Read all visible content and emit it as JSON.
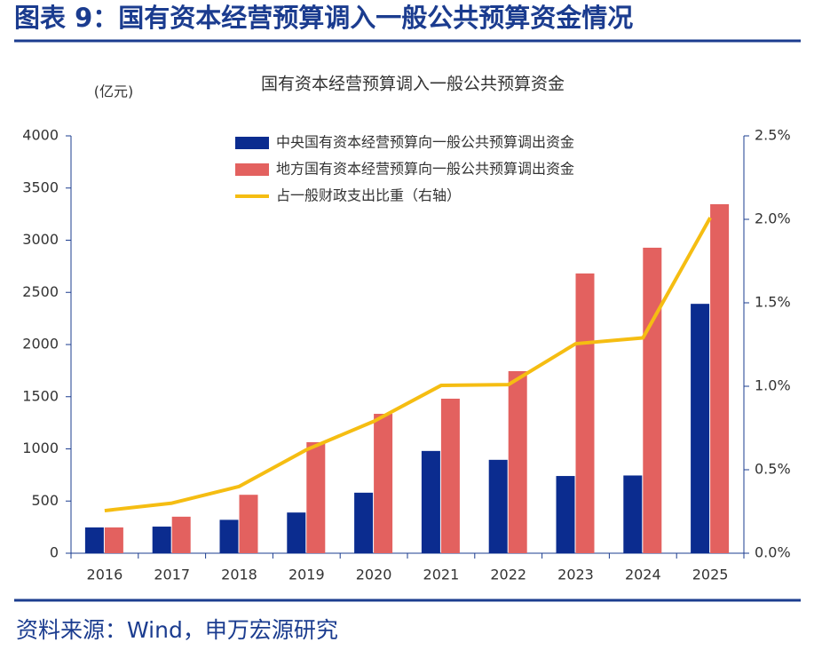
{
  "page_title": "图表 9：国有资本经营预算调入一般公共预算资金情况",
  "source": "资料来源：Wind，申万宏源研究",
  "chart_data": {
    "type": "bar",
    "title": "国有资本经营预算调入一般公共预算资金",
    "y_label": "(亿元)",
    "categories": [
      "2016",
      "2017",
      "2018",
      "2019",
      "2020",
      "2021",
      "2022",
      "2023",
      "2024",
      "2025"
    ],
    "series": [
      {
        "name": "中央国有资本经营预算向一般公共预算调出资金",
        "color": "#0b2c8f",
        "type": "bar",
        "values": [
          247,
          255,
          320,
          390,
          580,
          980,
          895,
          740,
          745,
          2390
        ]
      },
      {
        "name": "地方国有资本经营预算向一般公共预算调出资金",
        "color": "#e3615f",
        "type": "bar",
        "values": [
          247,
          350,
          560,
          1064,
          1336,
          1481,
          1745,
          2681,
          2928,
          3345
        ]
      },
      {
        "name": "占一般财政支出比重（右轴）",
        "color": "#f5bd12",
        "type": "line",
        "axis": "y2",
        "values": [
          0.255,
          0.3,
          0.4,
          0.62,
          0.79,
          1.005,
          1.01,
          1.255,
          1.29,
          2.01
        ]
      }
    ],
    "ylim": [
      0,
      4000
    ],
    "yticks": [
      0,
      500,
      1000,
      1500,
      2000,
      2500,
      3000,
      3500,
      4000
    ],
    "y2lim": [
      0,
      2.5
    ],
    "y2ticks": [
      {
        "value": 0,
        "label": "0.0%"
      },
      {
        "value": 0.5,
        "label": "0.5%"
      },
      {
        "value": 1,
        "label": "1.0%"
      },
      {
        "value": 1.5,
        "label": "1.5%"
      },
      {
        "value": 2,
        "label": "2.0%"
      },
      {
        "value": 2.5,
        "label": "2.5%"
      }
    ],
    "legend": "top-left"
  }
}
